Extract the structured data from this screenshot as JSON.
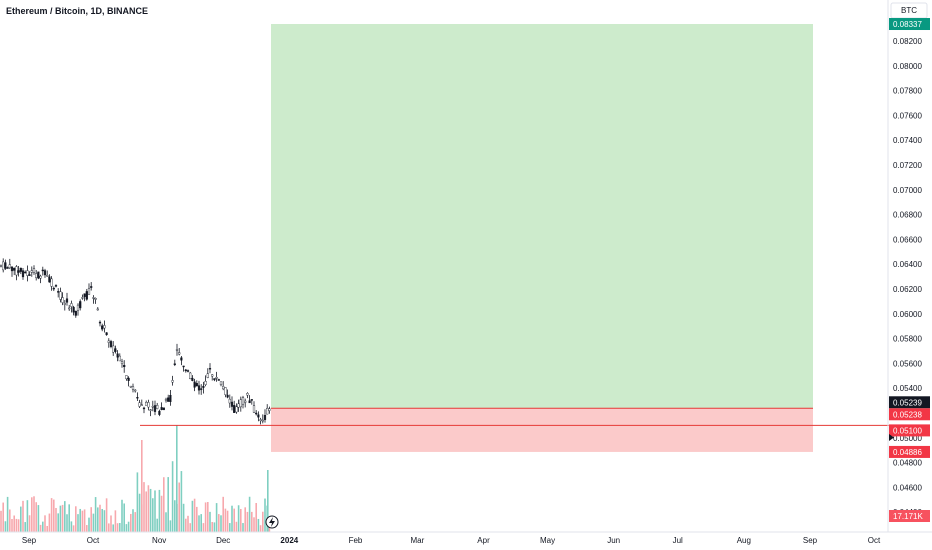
{
  "header": {
    "title": "Ethereum / Bitcoin, 1D, BINANCE"
  },
  "axis": {
    "currency_label": "BTC",
    "price_ticks": [
      "0.08200",
      "0.08000",
      "0.07800",
      "0.07600",
      "0.07400",
      "0.07200",
      "0.07000",
      "0.06800",
      "0.06600",
      "0.06400",
      "0.06200",
      "0.06000",
      "0.05800",
      "0.05600",
      "0.05400",
      "0.05000",
      "0.04800",
      "0.04600",
      "0.04400"
    ],
    "price_tick_values": [
      0.082,
      0.08,
      0.078,
      0.076,
      0.074,
      0.072,
      0.07,
      0.068,
      0.066,
      0.064,
      0.062,
      0.06,
      0.058,
      0.056,
      0.054,
      0.05,
      0.048,
      0.046,
      0.044
    ],
    "time_ticks": [
      {
        "label": "Sep",
        "date": "2023-09-01",
        "bold": false
      },
      {
        "label": "Oct",
        "date": "2023-10-01",
        "bold": false
      },
      {
        "label": "Nov",
        "date": "2023-11-01",
        "bold": false
      },
      {
        "label": "Dec",
        "date": "2023-12-01",
        "bold": false
      },
      {
        "label": "2024",
        "date": "2024-01-01",
        "bold": true
      },
      {
        "label": "Feb",
        "date": "2024-02-01",
        "bold": false
      },
      {
        "label": "Mar",
        "date": "2024-03-01",
        "bold": false
      },
      {
        "label": "Apr",
        "date": "2024-04-01",
        "bold": false
      },
      {
        "label": "May",
        "date": "2024-05-01",
        "bold": false
      },
      {
        "label": "Jun",
        "date": "2024-06-01",
        "bold": false
      },
      {
        "label": "Jul",
        "date": "2024-07-01",
        "bold": false
      },
      {
        "label": "Aug",
        "date": "2024-08-01",
        "bold": false
      },
      {
        "label": "Sep",
        "date": "2024-09-01",
        "bold": false
      },
      {
        "label": "Oct",
        "date": "2024-10-01",
        "bold": false
      }
    ]
  },
  "position": {
    "target_price": "0.08337",
    "entry_price": "0.05238",
    "stop_price": "0.04886",
    "target_color": "#cdebcc",
    "stop_color": "#fbcaca",
    "target_badge_color": "#089981",
    "stop_badge_color": "#f23645"
  },
  "price_badges": {
    "last_price": "0.05239",
    "entry": "0.05238",
    "support": "0.05100",
    "volume": "17.171K"
  },
  "colors": {
    "up": "#089981",
    "down": "#f23645",
    "candle": "#131722",
    "volume_up": "#7fcfc1",
    "volume_down": "#f7a8ad"
  },
  "icons": {
    "replay": "lightning-icon"
  }
}
